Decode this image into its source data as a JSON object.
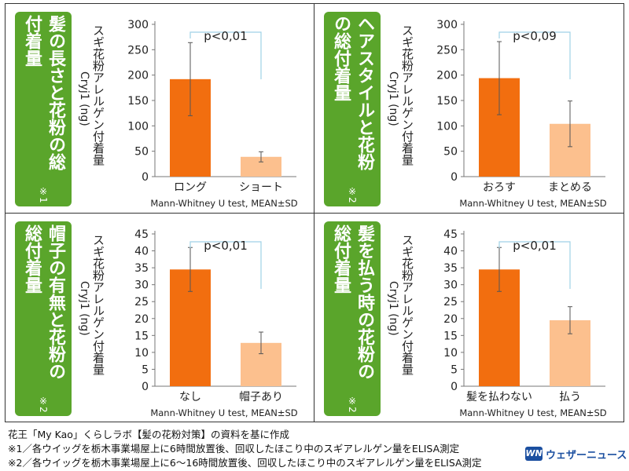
{
  "colors": {
    "dark_bar": "#f26e0f",
    "light_bar": "#fcc08e",
    "title_bg": "#5aa52b",
    "bracket": "#9fd1e6"
  },
  "ylabel": "スギ花粉アレルゲン付着量",
  "ylabel_unit": "Cryj1 (ng)",
  "stat_note": "Mann-Whitney U test, MEAN±SD",
  "chart_data": [
    {
      "type": "bar",
      "title": "髪の長さと花粉の総付着量",
      "note": "※1",
      "categories": [
        "ロング",
        "ショート"
      ],
      "values": [
        192,
        39
      ],
      "errors": [
        72,
        10
      ],
      "ylim": [
        0,
        300
      ],
      "ticks": [
        0,
        50,
        100,
        150,
        200,
        250,
        300
      ],
      "pvalue": "p<0,01"
    },
    {
      "type": "bar",
      "title": "ヘアスタイルと花粉の総付着量",
      "note": "※2",
      "categories": [
        "おろす",
        "まとめる"
      ],
      "values": [
        194,
        104
      ],
      "errors": [
        72,
        45
      ],
      "ylim": [
        0,
        300
      ],
      "ticks": [
        0,
        50,
        100,
        150,
        200,
        250,
        300
      ],
      "pvalue": "p<0,09"
    },
    {
      "type": "bar",
      "title": "帽子の有無と花粉の総付着量",
      "note": "※2",
      "categories": [
        "なし",
        "帽子あり"
      ],
      "values": [
        34.5,
        12.8
      ],
      "errors": [
        6.5,
        3.2
      ],
      "ylim": [
        0,
        45
      ],
      "ticks": [
        0,
        5,
        10,
        15,
        20,
        25,
        30,
        35,
        40,
        45
      ],
      "pvalue": "p<0,01"
    },
    {
      "type": "bar",
      "title": "髪を払う時の花粉の総付着量",
      "note": "※2",
      "categories": [
        "髪を払わない",
        "払う"
      ],
      "values": [
        34.5,
        19.5
      ],
      "errors": [
        6.5,
        4
      ],
      "ylim": [
        0,
        45
      ],
      "ticks": [
        0,
        5,
        10,
        15,
        20,
        25,
        30,
        35,
        40,
        45
      ],
      "pvalue": "p<0,01"
    }
  ],
  "footer": {
    "source": "花王「My Kao」くらしラボ【髪の花粉対策】の資料を基に作成",
    "note1": "※1／各ウイッグを栃木事業場屋上に6時間放置後、回収したほこり中のスギアレルゲン量をELISA測定",
    "note2": "※2／各ウイッグを栃木事業場屋上に6〜16時間放置後、回収したほこり中のスギアレルゲン量をELISA測定"
  },
  "logo": {
    "mark": "WN",
    "text": "ウェザーニュース"
  }
}
